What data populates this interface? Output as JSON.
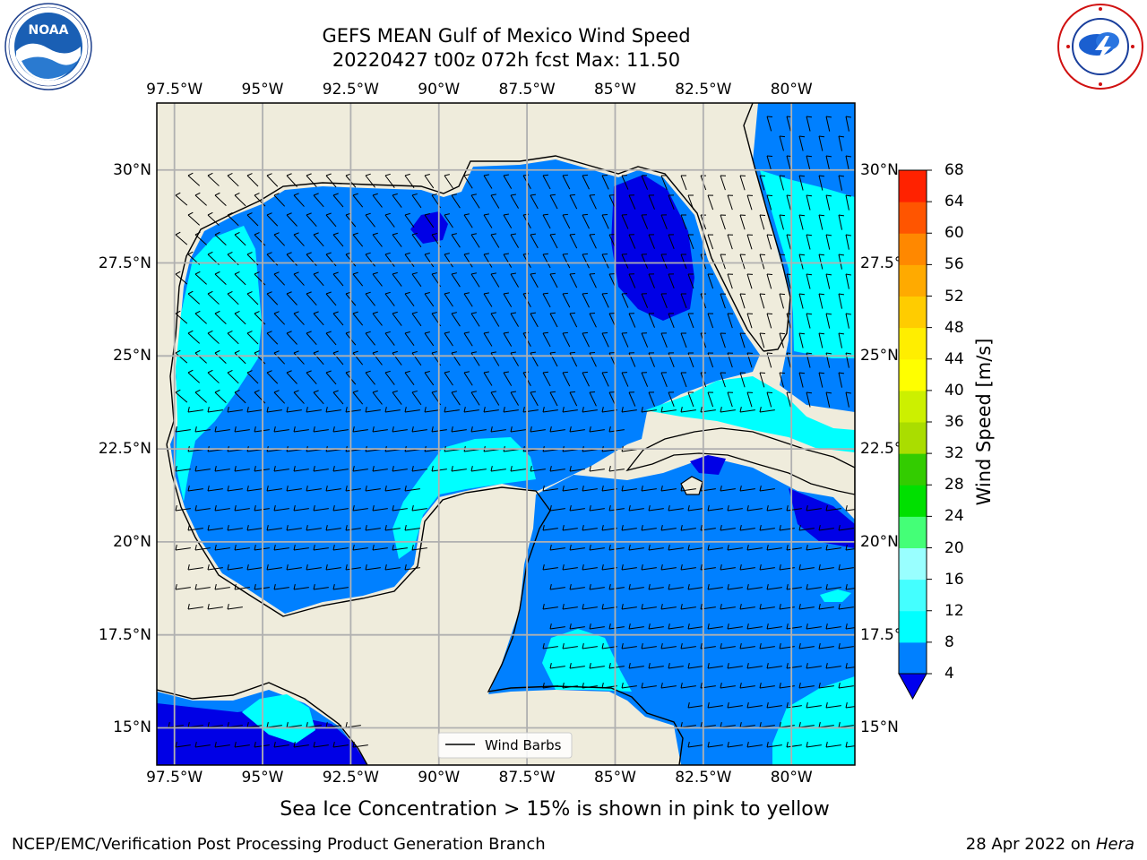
{
  "header": {
    "title_line1": "GEFS MEAN Gulf of Mexico Wind Speed",
    "title_line2": "20220427 t00z 072h fcst   Max: 11.50"
  },
  "logos": {
    "left": "noaa-logo",
    "right": "national-weather-service-logo"
  },
  "map": {
    "lon_labels": [
      "97.5°W",
      "95°W",
      "92.5°W",
      "90°W",
      "87.5°W",
      "85°W",
      "82.5°W",
      "80°W"
    ],
    "lat_labels": [
      "30°N",
      "27.5°N",
      "25°N",
      "22.5°N",
      "20°N",
      "17.5°N",
      "15°N"
    ],
    "lon_range": [
      -98,
      -78.2
    ],
    "lat_range": [
      14,
      31.8
    ],
    "grid": true,
    "legend_label": "Wind Barbs",
    "legend_position": "bottom-center",
    "colors": {
      "land": "#efecdc",
      "wind_4_8": "#0080ff",
      "wind_8_12": "#00ffff",
      "wind_below_4": "#0000e6",
      "coast": "#000000",
      "grid": "#b0b0b0"
    }
  },
  "colorbar": {
    "label": "Wind Speed [m/s]",
    "levels": [
      "4",
      "8",
      "12",
      "16",
      "20",
      "24",
      "28",
      "32",
      "36",
      "40",
      "44",
      "48",
      "52",
      "56",
      "60",
      "64",
      "68"
    ],
    "colors": [
      "#0080ff",
      "#00ffff",
      "#44ffff",
      "#99ffff",
      "#44ff77",
      "#00e000",
      "#33cc00",
      "#aadd00",
      "#ccf000",
      "#ffff00",
      "#ffee00",
      "#ffcc00",
      "#ffaa00",
      "#ff8800",
      "#ff5500",
      "#ff2200"
    ],
    "extend_color": "#0000ee"
  },
  "sea_ice_note": "Sea Ice Concentration > 15% is shown in pink to yellow",
  "footer": {
    "left": "NCEP/EMC/Verification Post Processing Product Generation Branch",
    "right_date": "28 Apr 2022 on ",
    "right_machine": "Hera"
  }
}
